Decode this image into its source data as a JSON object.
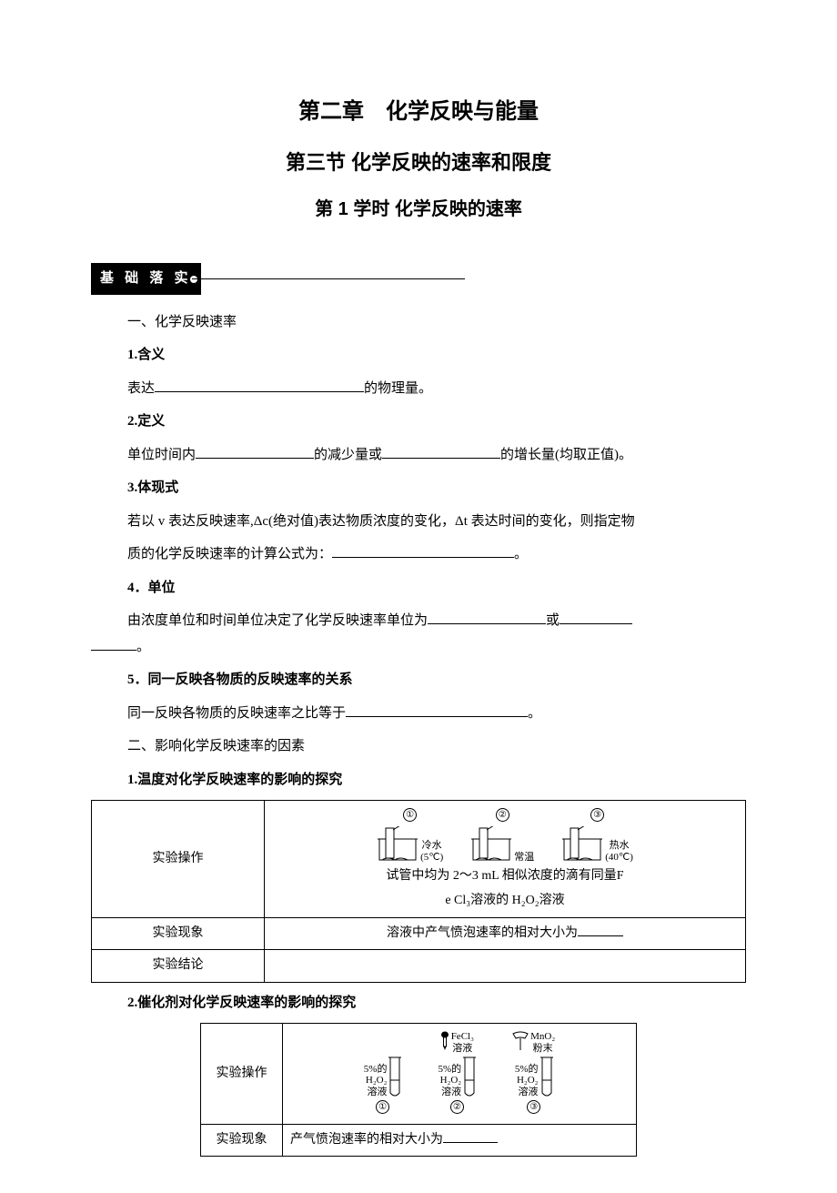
{
  "titles": {
    "chapter": "第二章　化学反映与能量",
    "section": "第三节  化学反映的速率和限度",
    "lesson": "第 1 学时  化学反映的速率"
  },
  "badge": "基 础 落 实",
  "part1": {
    "heading": "一、化学反映速率",
    "items": {
      "i1": {
        "num": "1.含义",
        "pre": "表达",
        "post": "的物理量。"
      },
      "i2": {
        "num": "2.定义",
        "pre": "单位时间内",
        "mid": "的减少量或",
        "post": "的增长量(均取正值)。"
      },
      "i3": {
        "num": "3.体现式",
        "line1a": "若以 v 表达反映速率,Δc(绝对值)表达物质浓度的变化，Δt 表达时间的变化，则指定物",
        "line1b": "质的化学反映速率的计算公式为：",
        "post": "。"
      },
      "i4": {
        "num": "4．单位",
        "pre": "由浓度单位和时间单位决定了化学反映速率单位为",
        "mid": "或",
        "post": "。"
      },
      "i5": {
        "num": "5．同一反映各物质的反映速率的关系",
        "pre": "同一反映各物质的反映速率之比等于",
        "post": "。"
      }
    }
  },
  "part2": {
    "heading": "二、影响化学反映速率的因素",
    "exp1": {
      "title": "1.温度对化学反映速率的影响的探究",
      "row_op": "实验操作",
      "row_phen": "实验现象",
      "row_conc": "实验结论",
      "beakers": {
        "b1": {
          "n": "①",
          "t1": "冷水",
          "t2": "(5℃)"
        },
        "b2": {
          "n": "②",
          "t1": "常温",
          "t2": ""
        },
        "b3": {
          "n": "③",
          "t1": "热水",
          "t2": "(40℃)"
        }
      },
      "caption_a": "试管中均为 2～3 mL 相似浓度的滴有同量F",
      "caption_b": "e Cl₃溶液的 H₂O₂溶液",
      "phen_text": "溶液中产气愤泡速率的相对大小为"
    },
    "exp2": {
      "title": "2.催化剂对化学反映速率的影响的探究",
      "row_op": "实验操作",
      "row_phen": "实验现象",
      "tubes": {
        "t1": {
          "n": "①",
          "add": "",
          "sol": "5%的\nH₂O₂\n溶液"
        },
        "t2": {
          "n": "②",
          "add": "FeCl₃\n溶液",
          "sol": "5%的\nH₂O₂\n溶液"
        },
        "t3": {
          "n": "③",
          "add": "MnO₂\n粉末",
          "sol": "5%的\nH₂O₂\n溶液"
        }
      },
      "phen_text": "产气愤泡速率的相对大小为"
    }
  }
}
